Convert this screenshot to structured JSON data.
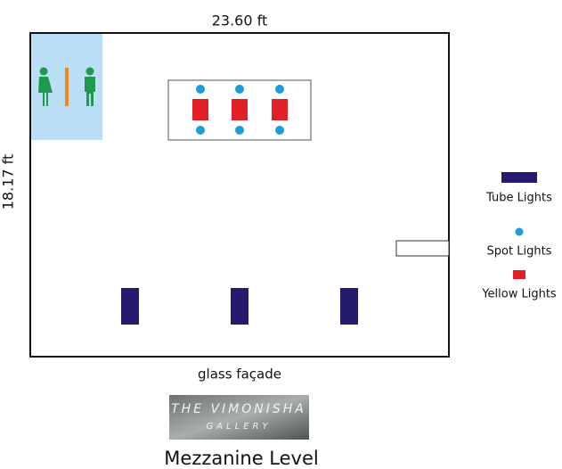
{
  "plan": {
    "width_label": "23.60 ft",
    "height_label": "18.17 ft",
    "bottom_label": "glass façade",
    "level": "Mezzanine Level"
  },
  "legend": {
    "items": [
      "Tube Lights",
      "Spot Lights",
      "Yellow Lights"
    ]
  },
  "logo": {
    "line1": "THE VIMONISHA",
    "line2": "GALLERY"
  }
}
